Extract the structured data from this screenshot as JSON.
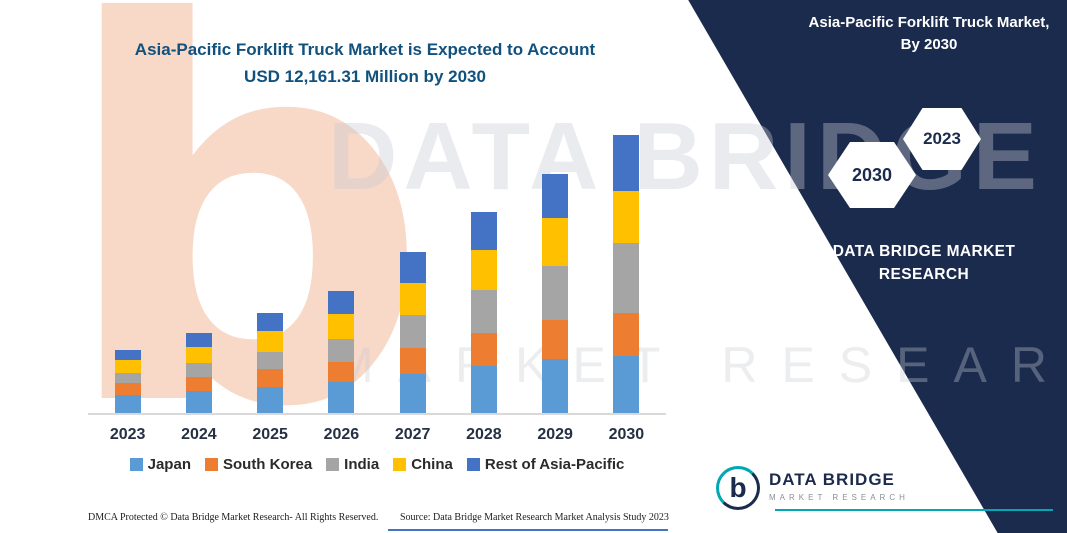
{
  "page": {
    "title_line1": "Asia-Pacific Forklift Truck Market is Expected to Account",
    "title_line2": "USD 12,161.31 Million by 2030"
  },
  "side_panel": {
    "title": "Asia-Pacific Forklift Truck Market, By 2030",
    "hexagon_left": "2030",
    "hexagon_right": "2023",
    "brand_line1": "DATA BRIDGE MARKET",
    "brand_line2": "RESEARCH",
    "background_color": "#1b2b4d"
  },
  "watermark": {
    "line1": "DATA BRIDGE",
    "line2": "MARKET RESEARCH",
    "letter": "b"
  },
  "chart_data": {
    "type": "bar",
    "stacked": true,
    "title": "Asia-Pacific Forklift Truck Market is Expected to Account USD 12,161.31 Million by 2030",
    "unit": "USD Million",
    "categories": [
      "2023",
      "2024",
      "2025",
      "2026",
      "2027",
      "2028",
      "2029",
      "2030"
    ],
    "series": [
      {
        "name": "Japan",
        "color": "#5B9BD5",
        "values": [
          790,
          950,
          1150,
          1350,
          1700,
          2050,
          2350,
          2500
        ]
      },
      {
        "name": "South Korea",
        "color": "#ED7D31",
        "values": [
          525,
          640,
          760,
          880,
          1150,
          1430,
          1700,
          1880
        ]
      },
      {
        "name": "India",
        "color": "#A5A5A5",
        "values": [
          437,
          580,
          780,
          1020,
          1450,
          1900,
          2400,
          3060
        ]
      },
      {
        "name": "China",
        "color": "#FFC000",
        "values": [
          570,
          700,
          880,
          1080,
          1400,
          1750,
          2100,
          2270
        ]
      },
      {
        "name": "Rest of Asia-Pacific",
        "color": "#4472C4",
        "values": [
          437,
          630,
          800,
          1000,
          1340,
          1660,
          1900,
          2451.31
        ]
      }
    ],
    "totals": [
      2759,
      3500,
      4370,
      5330,
      7040,
      8790,
      10450,
      12161.31
    ],
    "ylim": [
      0,
      12161.31
    ],
    "grid": false,
    "legend_position": "bottom"
  },
  "footer": {
    "dmca": "DMCA Protected © Data Bridge Market Research-  All Rights Reserved.",
    "source": "Source: Data Bridge Market Research  Market Analysis Study 2023"
  },
  "logo": {
    "letter": "b",
    "name_line1": "DATA BRIDGE",
    "name_line2": "MARKET RESEARCH"
  }
}
